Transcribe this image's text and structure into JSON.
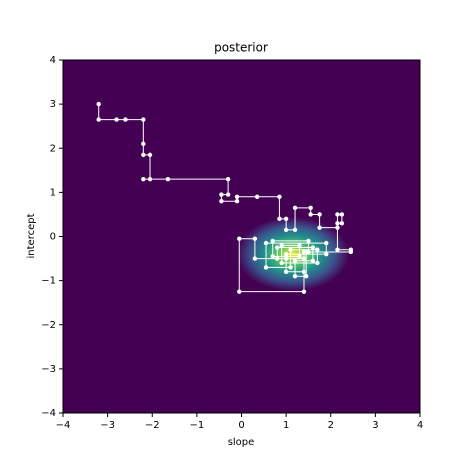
{
  "chart_data": {
    "type": "trace",
    "title": "posterior",
    "x_label": "slope",
    "y_label": "intercept",
    "xlim": [
      -4,
      4
    ],
    "ylim": [
      -4,
      4
    ],
    "xticks": [
      {
        "value": -4,
        "label": "−4"
      },
      {
        "value": -3,
        "label": "−3"
      },
      {
        "value": -2,
        "label": "−2"
      },
      {
        "value": -1,
        "label": "−1"
      },
      0,
      1,
      2,
      3,
      4
    ],
    "yticks": [
      {
        "value": -4,
        "label": "−4"
      },
      {
        "value": -3,
        "label": "−3"
      },
      {
        "value": -2,
        "label": "−2"
      },
      {
        "value": -1,
        "label": "−1"
      },
      0,
      1,
      2,
      3,
      4
    ],
    "background_color": "#440154",
    "density": {
      "center_x": 1.15,
      "center_y": -0.4,
      "sd_x": 0.42,
      "sd_y": 0.28,
      "colors": [
        "#fde725",
        "#5ec962",
        "#21918c",
        "#3b528b",
        "#440154"
      ]
    },
    "color": "#ffffff",
    "x": [
      -3.2,
      -3.2,
      -2.8,
      -2.6,
      -2.2,
      -2.2,
      -2.2,
      -2.05,
      -2.05,
      -2.2,
      -1.65,
      -0.3,
      -0.3,
      -0.45,
      -0.45,
      -0.1,
      -0.1,
      0.35,
      0.85,
      0.85,
      1.0,
      1.0,
      1.2,
      1.2,
      1.55,
      1.55,
      1.75,
      1.75,
      2.15,
      2.15,
      2.25,
      2.25,
      2.15,
      2.15,
      2.45,
      2.45,
      1.5,
      1.5,
      0.7,
      0.7,
      1.3,
      1.3,
      0.9,
      0.9,
      1.7,
      1.7,
      1.1,
      1.1,
      0.55,
      0.55,
      1.9,
      1.9,
      1.0,
      1.0,
      1.4,
      1.4,
      0.8,
      0.8,
      1.6,
      1.6,
      1.2,
      1.2,
      1.45,
      1.45,
      1.4,
      1.4,
      -0.05,
      -0.05,
      0.3,
      0.3,
      1.0,
      1.0
    ],
    "y": [
      3.0,
      2.65,
      2.65,
      2.65,
      2.65,
      2.1,
      1.85,
      1.85,
      1.3,
      1.3,
      1.3,
      1.3,
      0.95,
      0.95,
      0.8,
      0.8,
      0.9,
      0.9,
      0.9,
      0.4,
      0.4,
      0.15,
      0.15,
      0.65,
      0.65,
      0.5,
      0.5,
      0.2,
      0.2,
      0.5,
      0.5,
      0.3,
      0.3,
      -0.3,
      -0.3,
      -0.35,
      -0.35,
      -0.1,
      -0.1,
      -0.45,
      -0.45,
      -0.2,
      -0.2,
      -0.6,
      -0.6,
      -0.3,
      -0.3,
      -0.7,
      -0.7,
      -0.15,
      -0.15,
      -0.4,
      -0.4,
      -0.8,
      -0.8,
      -0.5,
      -0.5,
      -0.25,
      -0.25,
      -0.55,
      -0.55,
      -0.9,
      -0.9,
      -0.35,
      -0.35,
      -1.25,
      -1.25,
      -0.05,
      -0.05,
      -0.5,
      -0.5,
      -0.4
    ]
  }
}
